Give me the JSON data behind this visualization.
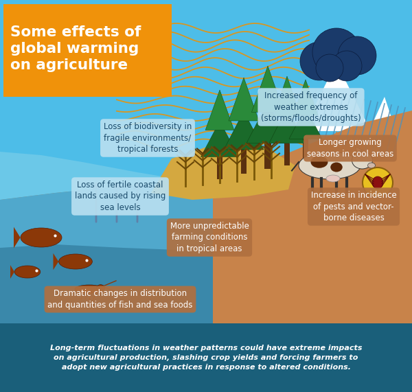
{
  "bg_color": "#4dbde8",
  "footer_bg": "#1a5f7a",
  "title_bg": "#f0920a",
  "title_text": "Some effects of\nglobal warming\non agriculture",
  "title_color": "#ffffff",
  "land_color_main": "#c8834a",
  "land_color_mid": "#b87040",
  "land_color_dark": "#a05830",
  "water_color_light": "#6bc8e8",
  "water_color_mid": "#50a8cc",
  "water_color_dark": "#3a88aa",
  "label_bg_light": "#b8dff0",
  "label_bg_brown": "#b07040",
  "text_dark": "#1a4a6a",
  "text_white": "#ffffff",
  "footer_text_line1": "Long-term fluctuations in weather patterns could have extreme impacts",
  "footer_text_line2": "on agricultural production, slashing crop yields and forcing farmers to",
  "footer_text_line3": "adopt new agricultural practices in response to altered conditions.",
  "footer_text_color": "#ffffff",
  "wave_color": "#e8920a",
  "mountain_snow": "#ffffff",
  "tree_green_dark": "#1a6a2a",
  "tree_green_mid": "#2a8a3a",
  "trunk_color": "#5a3010",
  "crop_color": "#c8a030",
  "fish_color": "#8b3808",
  "arrow_color": "#6080a8",
  "cloud_dark": "#1a3a6a",
  "cloud_mid": "#1e4a7a",
  "rain_color": "#5090b8"
}
